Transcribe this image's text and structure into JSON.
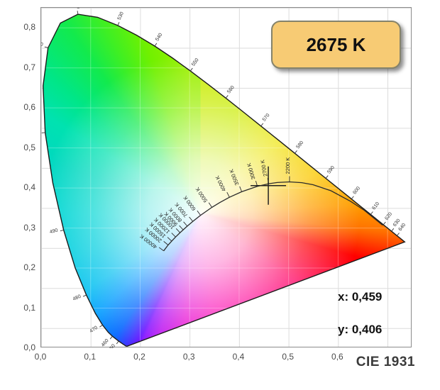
{
  "badge": {
    "label": "2675 K",
    "bg_color": "#f7cb74",
    "border_color": "#85836b"
  },
  "readout": {
    "x_text": "x: 0,459",
    "y_text": "y: 0,406"
  },
  "footer": {
    "title": "CIE 1931"
  },
  "axes": {
    "x_tick_labels": [
      "0,0",
      "0,1",
      "0,2",
      "0,3",
      "0,4",
      "0,5",
      "0,6"
    ],
    "x_tick_values": [
      0,
      0.1,
      0.2,
      0.3,
      0.4,
      0.5,
      0.6
    ],
    "y_tick_labels": [
      "0,0",
      "0,1",
      "0,2",
      "0,3",
      "0,4",
      "0,5",
      "0,6",
      "0,7",
      "0,8"
    ],
    "y_tick_values": [
      0,
      0.1,
      0.2,
      0.3,
      0.4,
      0.5,
      0.6,
      0.7,
      0.8
    ]
  },
  "chart_data": {
    "type": "scatter",
    "subtype": "CIE 1931 xy chromaticity diagram",
    "title": "CIE 1931",
    "xlabel": "",
    "ylabel": "",
    "xlim": [
      0,
      0.75
    ],
    "ylim": [
      0,
      0.85
    ],
    "grid": true,
    "grid_step": 0.1,
    "marker": {
      "x": 0.459,
      "y": 0.406,
      "cct_label": "2675 K",
      "shape": "crosshair"
    },
    "spectral_locus": [
      [
        380,
        0.1741,
        0.005
      ],
      [
        420,
        0.1714,
        0.0051
      ],
      [
        440,
        0.1644,
        0.0109
      ],
      [
        450,
        0.1566,
        0.0177
      ],
      [
        460,
        0.144,
        0.0297
      ],
      [
        465,
        0.1355,
        0.0399
      ],
      [
        470,
        0.1241,
        0.0578
      ],
      [
        475,
        0.1096,
        0.0868
      ],
      [
        480,
        0.0913,
        0.1327
      ],
      [
        485,
        0.0687,
        0.2007
      ],
      [
        490,
        0.0454,
        0.295
      ],
      [
        495,
        0.0235,
        0.4127
      ],
      [
        500,
        0.0082,
        0.5384
      ],
      [
        505,
        0.0039,
        0.6548
      ],
      [
        510,
        0.0139,
        0.7502
      ],
      [
        515,
        0.0389,
        0.812
      ],
      [
        520,
        0.0743,
        0.8338
      ],
      [
        525,
        0.1142,
        0.8262
      ],
      [
        530,
        0.1547,
        0.8059
      ],
      [
        535,
        0.1929,
        0.7816
      ],
      [
        540,
        0.2296,
        0.7543
      ],
      [
        545,
        0.2658,
        0.7243
      ],
      [
        550,
        0.3016,
        0.6923
      ],
      [
        555,
        0.3373,
        0.6589
      ],
      [
        560,
        0.3731,
        0.6245
      ],
      [
        565,
        0.4087,
        0.5896
      ],
      [
        570,
        0.4441,
        0.5547
      ],
      [
        575,
        0.4788,
        0.5202
      ],
      [
        580,
        0.5125,
        0.4866
      ],
      [
        585,
        0.5448,
        0.4544
      ],
      [
        590,
        0.5752,
        0.4242
      ],
      [
        595,
        0.6029,
        0.3965
      ],
      [
        600,
        0.627,
        0.3725
      ],
      [
        605,
        0.6482,
        0.3514
      ],
      [
        610,
        0.6658,
        0.334
      ],
      [
        615,
        0.6801,
        0.3197
      ],
      [
        620,
        0.6915,
        0.3083
      ],
      [
        630,
        0.7079,
        0.292
      ],
      [
        640,
        0.719,
        0.2809
      ],
      [
        650,
        0.726,
        0.274
      ],
      [
        700,
        0.7347,
        0.2653
      ]
    ],
    "wavelength_tick_labels": [
      450,
      460,
      470,
      480,
      490,
      500,
      510,
      520,
      530,
      540,
      550,
      560,
      570,
      580,
      590,
      600,
      610,
      620,
      630,
      640
    ],
    "planckian_locus": [
      [
        40000,
        0.2475,
        0.243
      ],
      [
        20000,
        0.2565,
        0.2577
      ],
      [
        15000,
        0.2637,
        0.2673
      ],
      [
        12000,
        0.2717,
        0.2776
      ],
      [
        10000,
        0.2807,
        0.2884
      ],
      [
        9000,
        0.2869,
        0.2956
      ],
      [
        8000,
        0.2952,
        0.3048
      ],
      [
        7000,
        0.3064,
        0.3166
      ],
      [
        6000,
        0.3221,
        0.3318
      ],
      [
        5000,
        0.3451,
        0.3516
      ],
      [
        4500,
        0.3608,
        0.3636
      ],
      [
        4000,
        0.3805,
        0.3768
      ],
      [
        3500,
        0.4053,
        0.3907
      ],
      [
        3000,
        0.4369,
        0.4041
      ],
      [
        2700,
        0.4599,
        0.4106
      ],
      [
        2500,
        0.477,
        0.4137
      ],
      [
        2200,
        0.5018,
        0.4152
      ],
      [
        2000,
        0.5267,
        0.4133
      ],
      [
        1800,
        0.5494,
        0.4082
      ],
      [
        1500,
        0.5857,
        0.3931
      ],
      [
        1200,
        0.625,
        0.367
      ],
      [
        1000,
        0.6528,
        0.3444
      ],
      [
        800,
        0.69,
        0.307
      ]
    ],
    "temperature_tick_labels": [
      40000,
      20000,
      15000,
      12000,
      10000,
      9000,
      8000,
      7000,
      6000,
      5000,
      4000,
      3500,
      3000,
      2700,
      2200
    ],
    "colors": {
      "white_point": {
        "x": 0.322,
        "y": 0.338
      },
      "white_wash_radius_px": 265,
      "outline": "#1b1b1b",
      "planckian_stroke": "#2b2b2b",
      "grid_outside": "#dcdcdc",
      "grid_inside": "rgba(255,255,255,0.28)",
      "conic_stops": [
        {
          "a": 16.9,
          "c": "#C8EC00"
        },
        {
          "a": 46.7,
          "c": "#EDE400"
        },
        {
          "a": 71.8,
          "c": "#FBC800"
        },
        {
          "a": 87.1,
          "c": "#FF9D00"
        },
        {
          "a": 95.6,
          "c": "#FF7300"
        },
        {
          "a": 102.4,
          "c": "#FF2400"
        },
        {
          "a": 105.7,
          "c": "#FF0000"
        },
        {
          "a": 126.4,
          "c": "#FF0064"
        },
        {
          "a": 147.5,
          "c": "#FF0090"
        },
        {
          "a": 172.9,
          "c": "#FA00B4"
        },
        {
          "a": 188.5,
          "c": "#E500D2"
        },
        {
          "a": 199.0,
          "c": "#B400F0"
        },
        {
          "a": 204.1,
          "c": "#8000FF"
        },
        {
          "a": 205.6,
          "c": "#5C00FF"
        },
        {
          "a": 209.9,
          "c": "#2E33FF"
        },
        {
          "a": 214.5,
          "c": "#0064FF"
        },
        {
          "a": 225.5,
          "c": "#009CFF"
        },
        {
          "a": 236.0,
          "c": "#00BFF0"
        },
        {
          "a": 251.5,
          "c": "#00CEE0"
        },
        {
          "a": 269.5,
          "c": "#00D6D4"
        },
        {
          "a": 288.6,
          "c": "#00D8C0"
        },
        {
          "a": 302.3,
          "c": "#00E2B0"
        },
        {
          "a": 312.2,
          "c": "#00E688"
        },
        {
          "a": 324.5,
          "c": "#12EA4D"
        },
        {
          "a": 332.8,
          "c": "#3FEF23"
        },
        {
          "a": 342.1,
          "c": "#71F000"
        },
        {
          "a": 355.4,
          "c": "#9CEF00"
        }
      ]
    }
  }
}
